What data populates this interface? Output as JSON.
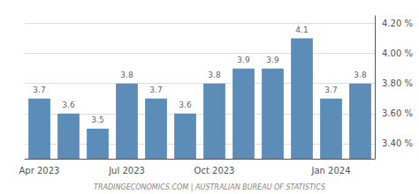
{
  "chart_data": {
    "type": "bar",
    "categories": [
      "Apr 2023",
      null,
      null,
      "Jul 2023",
      null,
      null,
      "Oct 2023",
      null,
      null,
      null,
      "Jan 2024",
      null
    ],
    "values": [
      3.7,
      3.6,
      3.5,
      3.8,
      3.7,
      3.6,
      3.8,
      3.9,
      3.9,
      4.1,
      3.7,
      3.8
    ],
    "color": "#5b8db8",
    "ylim": [
      3.3,
      4.25
    ],
    "yticks": [
      {
        "value": 3.4,
        "label": "3.40 %"
      },
      {
        "value": 3.6,
        "label": "3.60 %"
      },
      {
        "value": 3.8,
        "label": "3.80 %"
      },
      {
        "value": 4.0,
        "label": "4.00 %"
      },
      {
        "value": 4.2,
        "label": "4.20 %"
      }
    ],
    "grid": true,
    "data_labels": true,
    "annotations": [
      "TRADINGECONOMICS.COM | AUSTRALIAN BUREAU OF STATISTICS"
    ]
  }
}
